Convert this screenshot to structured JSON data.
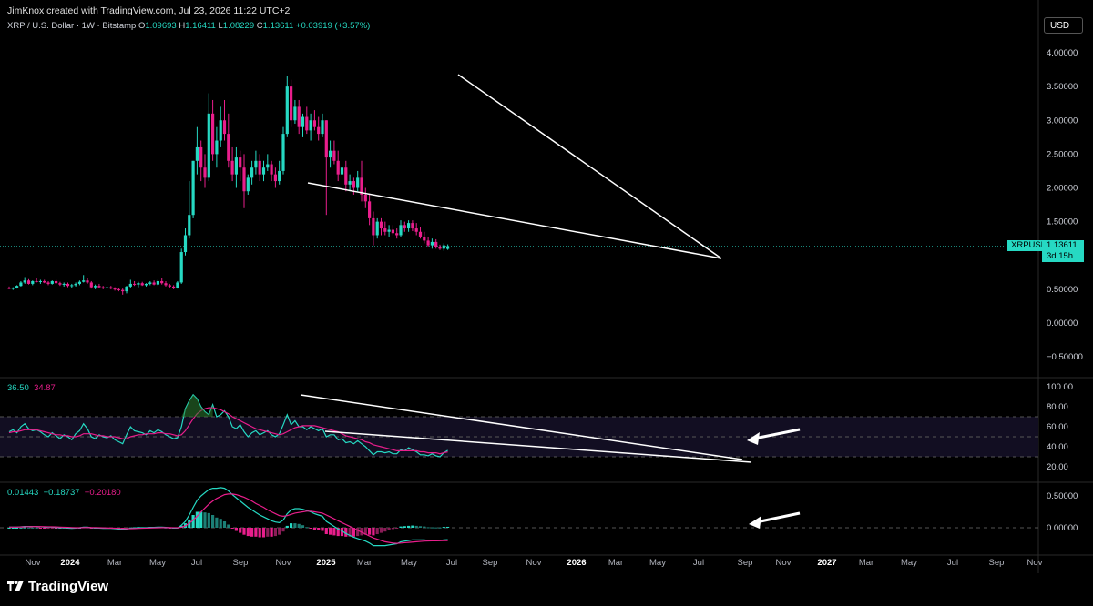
{
  "header": {
    "credit": "JimKnox created with TradingView.com, Jul 23, 2026 11:22 UTC+2",
    "symbol_desc": "XRP / U.S. Dollar · 1W · Bitstamp",
    "open_label": "O",
    "open": "1.09693",
    "high_label": "H",
    "high": "1.16411",
    "low_label": "L",
    "low": "1.08229",
    "close_label": "C",
    "close": "1.13611",
    "change": "+0.03919 (+3.57%)"
  },
  "currency_button": "USD",
  "price_tag": {
    "symbol": "XRPUSD",
    "price": "1.13611",
    "countdown": "3d 15h"
  },
  "rsi_legend": {
    "value1": "36.50",
    "value2": "34.87"
  },
  "macd_legend": {
    "value1": "0.01443",
    "value2": "−0.18737",
    "value3": "−0.20180"
  },
  "price_axis": [
    "4.00000",
    "3.50000",
    "3.00000",
    "2.50000",
    "2.00000",
    "1.50000",
    "0.50000",
    "0.00000",
    "−0.50000"
  ],
  "rsi_axis": [
    "100.00",
    "80.00",
    "60.00",
    "40.00",
    "20.00"
  ],
  "macd_axis": [
    "0.50000",
    "0.00000"
  ],
  "time_axis": [
    "Nov",
    "2024",
    "Mar",
    "May",
    "Jul",
    "Sep",
    "Nov",
    "2025",
    "Mar",
    "May",
    "Jul",
    "Sep",
    "Nov",
    "2026",
    "Mar",
    "May",
    "Jul",
    "Sep",
    "Nov",
    "2027",
    "Mar",
    "May",
    "Jul",
    "Sep",
    "Nov"
  ],
  "brand": "TradingView",
  "colors": {
    "up": "#26d9c3",
    "down": "#e91e8c",
    "background": "#000000",
    "signal": "#e91e8c"
  },
  "chart_data": {
    "type": "candlestick",
    "series_price": [
      [
        0.52,
        0.54,
        0.5,
        0.51
      ],
      [
        0.51,
        0.53,
        0.49,
        0.52
      ],
      [
        0.52,
        0.56,
        0.51,
        0.55
      ],
      [
        0.55,
        0.62,
        0.54,
        0.6
      ],
      [
        0.6,
        0.68,
        0.58,
        0.63
      ],
      [
        0.63,
        0.65,
        0.57,
        0.58
      ],
      [
        0.58,
        0.63,
        0.56,
        0.62
      ],
      [
        0.62,
        0.66,
        0.6,
        0.61
      ],
      [
        0.61,
        0.64,
        0.58,
        0.62
      ],
      [
        0.62,
        0.64,
        0.59,
        0.6
      ],
      [
        0.6,
        0.62,
        0.56,
        0.58
      ],
      [
        0.58,
        0.63,
        0.57,
        0.62
      ],
      [
        0.62,
        0.64,
        0.58,
        0.59
      ],
      [
        0.59,
        0.61,
        0.55,
        0.57
      ],
      [
        0.57,
        0.6,
        0.54,
        0.58
      ],
      [
        0.58,
        0.6,
        0.53,
        0.55
      ],
      [
        0.55,
        0.58,
        0.52,
        0.56
      ],
      [
        0.56,
        0.6,
        0.54,
        0.58
      ],
      [
        0.58,
        0.63,
        0.56,
        0.61
      ],
      [
        0.61,
        0.71,
        0.6,
        0.63
      ],
      [
        0.63,
        0.66,
        0.58,
        0.6
      ],
      [
        0.6,
        0.62,
        0.51,
        0.53
      ],
      [
        0.53,
        0.57,
        0.5,
        0.55
      ],
      [
        0.55,
        0.58,
        0.52,
        0.53
      ],
      [
        0.53,
        0.55,
        0.5,
        0.52
      ],
      [
        0.52,
        0.55,
        0.49,
        0.53
      ],
      [
        0.53,
        0.55,
        0.5,
        0.51
      ],
      [
        0.51,
        0.53,
        0.48,
        0.5
      ],
      [
        0.5,
        0.52,
        0.47,
        0.49
      ],
      [
        0.49,
        0.51,
        0.42,
        0.47
      ],
      [
        0.47,
        0.55,
        0.44,
        0.54
      ],
      [
        0.54,
        0.64,
        0.52,
        0.58
      ],
      [
        0.58,
        0.62,
        0.55,
        0.57
      ],
      [
        0.57,
        0.61,
        0.53,
        0.59
      ],
      [
        0.59,
        0.61,
        0.55,
        0.56
      ],
      [
        0.56,
        0.59,
        0.54,
        0.58
      ],
      [
        0.58,
        0.62,
        0.56,
        0.6
      ],
      [
        0.6,
        0.63,
        0.56,
        0.57
      ],
      [
        0.57,
        0.64,
        0.55,
        0.62
      ],
      [
        0.62,
        0.66,
        0.57,
        0.59
      ],
      [
        0.59,
        0.62,
        0.54,
        0.56
      ],
      [
        0.56,
        0.58,
        0.52,
        0.54
      ],
      [
        0.54,
        0.56,
        0.5,
        0.52
      ],
      [
        0.52,
        0.62,
        0.51,
        0.6
      ],
      [
        0.6,
        1.1,
        0.58,
        1.05
      ],
      [
        1.05,
        1.4,
        1.0,
        1.3
      ],
      [
        1.3,
        2.1,
        1.25,
        1.6
      ],
      [
        1.6,
        2.4,
        1.55,
        2.4
      ],
      [
        2.4,
        2.9,
        2.2,
        2.6
      ],
      [
        2.6,
        2.7,
        2.1,
        2.3
      ],
      [
        2.3,
        2.5,
        2.0,
        2.15
      ],
      [
        2.15,
        3.4,
        2.1,
        3.1
      ],
      [
        3.1,
        3.3,
        2.4,
        2.5
      ],
      [
        2.5,
        2.9,
        2.3,
        2.7
      ],
      [
        2.7,
        3.2,
        2.6,
        3.0
      ],
      [
        3.0,
        3.3,
        2.7,
        2.8
      ],
      [
        2.8,
        3.1,
        2.3,
        2.4
      ],
      [
        2.4,
        2.6,
        2.1,
        2.2
      ],
      [
        2.2,
        2.6,
        2.0,
        2.45
      ],
      [
        2.45,
        2.55,
        2.1,
        2.3
      ],
      [
        2.3,
        2.5,
        1.7,
        1.95
      ],
      [
        1.95,
        2.2,
        1.9,
        2.15
      ],
      [
        2.15,
        2.4,
        2.05,
        2.3
      ],
      [
        2.3,
        2.55,
        2.2,
        2.4
      ],
      [
        2.4,
        2.5,
        2.1,
        2.2
      ],
      [
        2.2,
        2.4,
        2.1,
        2.3
      ],
      [
        2.3,
        2.5,
        2.25,
        2.35
      ],
      [
        2.35,
        2.4,
        2.1,
        2.2
      ],
      [
        2.2,
        2.3,
        2.0,
        2.1
      ],
      [
        2.1,
        2.4,
        2.05,
        2.25
      ],
      [
        2.25,
        2.9,
        2.2,
        2.8
      ],
      [
        2.8,
        3.65,
        2.75,
        3.5
      ],
      [
        3.5,
        3.6,
        2.9,
        3.0
      ],
      [
        3.0,
        3.3,
        2.95,
        3.2
      ],
      [
        3.2,
        3.3,
        2.8,
        2.9
      ],
      [
        2.9,
        3.1,
        2.75,
        3.05
      ],
      [
        3.05,
        3.2,
        2.8,
        2.85
      ],
      [
        2.85,
        3.1,
        2.7,
        3.0
      ],
      [
        3.0,
        3.15,
        2.85,
        2.9
      ],
      [
        2.9,
        3.05,
        2.7,
        2.8
      ],
      [
        2.8,
        3.1,
        2.75,
        3.0
      ],
      [
        3.0,
        3.0,
        1.6,
        2.45
      ],
      [
        2.45,
        2.7,
        2.3,
        2.55
      ],
      [
        2.55,
        2.7,
        2.35,
        2.4
      ],
      [
        2.4,
        2.55,
        2.1,
        2.2
      ],
      [
        2.2,
        2.45,
        2.1,
        2.3
      ],
      [
        2.3,
        2.4,
        1.95,
        2.05
      ],
      [
        2.05,
        2.2,
        1.95,
        2.1
      ],
      [
        2.1,
        2.15,
        1.9,
        2.0
      ],
      [
        2.0,
        2.25,
        1.95,
        2.15
      ],
      [
        2.15,
        2.4,
        1.8,
        1.9
      ],
      [
        1.9,
        2.0,
        1.7,
        1.8
      ],
      [
        1.8,
        1.9,
        1.45,
        1.55
      ],
      [
        1.55,
        1.65,
        1.15,
        1.3
      ],
      [
        1.3,
        1.55,
        1.25,
        1.5
      ],
      [
        1.5,
        1.55,
        1.3,
        1.4
      ],
      [
        1.4,
        1.5,
        1.3,
        1.35
      ],
      [
        1.35,
        1.45,
        1.28,
        1.38
      ],
      [
        1.38,
        1.45,
        1.3,
        1.33
      ],
      [
        1.33,
        1.4,
        1.25,
        1.3
      ],
      [
        1.3,
        1.52,
        1.28,
        1.45
      ],
      [
        1.45,
        1.5,
        1.35,
        1.4
      ],
      [
        1.4,
        1.52,
        1.35,
        1.48
      ],
      [
        1.48,
        1.52,
        1.36,
        1.4
      ],
      [
        1.4,
        1.48,
        1.3,
        1.35
      ],
      [
        1.35,
        1.42,
        1.25,
        1.28
      ],
      [
        1.28,
        1.35,
        1.18,
        1.22
      ],
      [
        1.22,
        1.28,
        1.12,
        1.15
      ],
      [
        1.15,
        1.25,
        1.1,
        1.2
      ],
      [
        1.2,
        1.24,
        1.1,
        1.13
      ],
      [
        1.13,
        1.16,
        1.08,
        1.1
      ],
      [
        1.1,
        1.18,
        1.07,
        1.15
      ],
      [
        1.097,
        1.164,
        1.082,
        1.136
      ]
    ],
    "rsi": [
      55,
      57,
      54,
      60,
      63,
      58,
      56,
      57,
      55,
      52,
      50,
      54,
      51,
      48,
      52,
      50,
      47,
      53,
      56,
      63,
      58,
      50,
      48,
      52,
      50,
      49,
      51,
      47,
      45,
      43,
      52,
      60,
      56,
      55,
      54,
      52,
      56,
      54,
      57,
      55,
      52,
      50,
      48,
      49,
      60,
      78,
      86,
      92,
      88,
      80,
      75,
      72,
      82,
      70,
      72,
      76,
      70,
      60,
      58,
      62,
      55,
      50,
      54,
      56,
      52,
      54,
      56,
      52,
      50,
      53,
      62,
      72,
      62,
      66,
      60,
      60,
      57,
      60,
      58,
      56,
      58,
      50,
      52,
      52,
      47,
      48,
      44,
      45,
      43,
      46,
      43,
      40,
      36,
      32,
      35,
      35,
      34,
      35,
      33,
      33,
      37,
      36,
      39,
      37,
      35,
      32,
      32,
      31,
      33,
      31,
      30,
      34,
      36.5
    ],
    "rsi_ma": [
      54,
      55,
      55,
      56,
      57,
      57,
      57,
      57,
      56,
      55,
      54,
      53,
      52,
      52,
      51,
      51,
      50,
      50,
      51,
      53,
      53,
      53,
      52,
      51,
      51,
      50,
      50,
      50,
      49,
      48,
      48,
      50,
      51,
      52,
      52,
      53,
      53,
      53,
      54,
      54,
      53,
      53,
      52,
      51,
      52,
      56,
      62,
      68,
      73,
      76,
      78,
      79,
      79,
      78,
      77,
      75,
      73,
      70,
      68,
      66,
      64,
      62,
      60,
      58,
      57,
      56,
      55,
      54,
      53,
      52,
      53,
      55,
      57,
      59,
      60,
      61,
      61,
      61,
      61,
      60,
      59,
      58,
      57,
      56,
      55,
      53,
      51,
      50,
      49,
      48,
      47,
      45,
      44,
      42,
      41,
      40,
      39,
      38,
      37,
      36,
      36,
      36,
      36,
      36,
      36,
      35,
      35,
      34,
      34,
      34,
      33,
      34,
      34.87
    ],
    "macd": [
      0.01,
      0.01,
      0.01,
      0.015,
      0.02,
      0.02,
      0.02,
      0.02,
      0.015,
      0.01,
      0.01,
      0.01,
      0.005,
      0,
      0,
      -0.005,
      -0.01,
      -0.005,
      0,
      0.01,
      0.01,
      0,
      -0.005,
      -0.005,
      -0.01,
      -0.01,
      -0.01,
      -0.015,
      -0.02,
      -0.025,
      -0.02,
      -0.01,
      -0.005,
      0,
      0,
      0,
      0.005,
      0.005,
      0.01,
      0.01,
      0.005,
      0,
      -0.005,
      -0.005,
      0.04,
      0.1,
      0.2,
      0.32,
      0.43,
      0.5,
      0.55,
      0.6,
      0.62,
      0.62,
      0.63,
      0.62,
      0.58,
      0.52,
      0.47,
      0.42,
      0.37,
      0.32,
      0.28,
      0.24,
      0.2,
      0.17,
      0.14,
      0.11,
      0.09,
      0.08,
      0.12,
      0.22,
      0.28,
      0.3,
      0.3,
      0.29,
      0.27,
      0.25,
      0.22,
      0.2,
      0.18,
      0.1,
      0.06,
      0.02,
      -0.02,
      -0.05,
      -0.09,
      -0.12,
      -0.15,
      -0.17,
      -0.19,
      -0.21,
      -0.24,
      -0.28,
      -0.28,
      -0.28,
      -0.28,
      -0.27,
      -0.26,
      -0.25,
      -0.22,
      -0.21,
      -0.2,
      -0.19,
      -0.19,
      -0.19,
      -0.19,
      -0.2,
      -0.2,
      -0.2,
      -0.2,
      -0.19,
      -0.187
    ],
    "macd_signal": [
      0.01,
      0.01,
      0.01,
      0.012,
      0.015,
      0.017,
      0.018,
      0.019,
      0.018,
      0.016,
      0.015,
      0.014,
      0.012,
      0.01,
      0.008,
      0.005,
      0.002,
      0,
      0,
      0.002,
      0.004,
      0.003,
      0.002,
      0,
      -0.002,
      -0.004,
      -0.005,
      -0.007,
      -0.01,
      -0.013,
      -0.015,
      -0.014,
      -0.012,
      -0.01,
      -0.008,
      -0.006,
      -0.004,
      -0.002,
      0,
      0.002,
      0.003,
      0.002,
      0.001,
      0,
      0.008,
      0.03,
      0.07,
      0.12,
      0.18,
      0.25,
      0.31,
      0.37,
      0.42,
      0.46,
      0.49,
      0.52,
      0.53,
      0.53,
      0.52,
      0.5,
      0.48,
      0.45,
      0.42,
      0.38,
      0.35,
      0.32,
      0.28,
      0.25,
      0.22,
      0.19,
      0.18,
      0.19,
      0.21,
      0.23,
      0.24,
      0.25,
      0.26,
      0.26,
      0.25,
      0.24,
      0.23,
      0.2,
      0.17,
      0.14,
      0.11,
      0.08,
      0.05,
      0.02,
      -0.01,
      -0.04,
      -0.07,
      -0.1,
      -0.13,
      -0.16,
      -0.18,
      -0.2,
      -0.22,
      -0.23,
      -0.24,
      -0.245,
      -0.24,
      -0.235,
      -0.23,
      -0.225,
      -0.22,
      -0.215,
      -0.21,
      -0.208,
      -0.206,
      -0.205,
      -0.204,
      -0.203,
      -0.2018
    ]
  }
}
